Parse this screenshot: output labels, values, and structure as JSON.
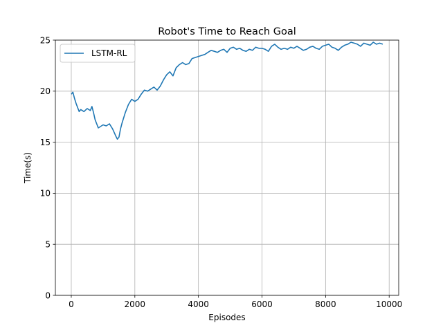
{
  "chart_data": {
    "type": "line",
    "title": "Robot's Time to Reach Goal",
    "xlabel": "Episodes",
    "ylabel": "Time(s)",
    "xlim": [
      -500,
      10300
    ],
    "ylim": [
      0,
      25
    ],
    "xticks": [
      0,
      2000,
      4000,
      6000,
      8000,
      10000
    ],
    "xtick_labels": [
      "0",
      "2000",
      "4000",
      "6000",
      "8000",
      "10000"
    ],
    "yticks": [
      0,
      5,
      10,
      15,
      20,
      25
    ],
    "ytick_labels": [
      "0",
      "5",
      "10",
      "15",
      "20",
      "25"
    ],
    "grid": true,
    "legend_position": "top-left",
    "series": [
      {
        "name": "LSTM-RL",
        "color": "#1f77b4",
        "x": [
          0,
          50,
          100,
          150,
          200,
          250,
          300,
          400,
          500,
          600,
          650,
          700,
          750,
          800,
          850,
          900,
          1000,
          1100,
          1200,
          1300,
          1400,
          1450,
          1500,
          1550,
          1600,
          1700,
          1800,
          1900,
          2000,
          2100,
          2200,
          2300,
          2400,
          2500,
          2600,
          2700,
          2800,
          2900,
          3000,
          3100,
          3200,
          3300,
          3400,
          3500,
          3600,
          3700,
          3800,
          3900,
          4000,
          4100,
          4200,
          4300,
          4400,
          4500,
          4600,
          4700,
          4800,
          4900,
          5000,
          5100,
          5200,
          5300,
          5400,
          5500,
          5600,
          5700,
          5800,
          5900,
          6000,
          6100,
          6200,
          6300,
          6400,
          6500,
          6600,
          6700,
          6800,
          6900,
          7000,
          7100,
          7200,
          7300,
          7400,
          7500,
          7600,
          7700,
          7800,
          7900,
          8000,
          8100,
          8200,
          8300,
          8400,
          8500,
          8600,
          8700,
          8800,
          8900,
          9000,
          9100,
          9200,
          9300,
          9400,
          9500,
          9600,
          9700,
          9800
        ],
        "y": [
          19.7,
          19.9,
          19.3,
          18.8,
          18.4,
          18.0,
          18.2,
          18.0,
          18.3,
          18.1,
          18.5,
          17.9,
          17.2,
          16.8,
          16.4,
          16.5,
          16.7,
          16.6,
          16.8,
          16.3,
          15.6,
          15.3,
          15.5,
          16.3,
          16.9,
          17.9,
          18.7,
          19.2,
          19.0,
          19.2,
          19.7,
          20.1,
          20.0,
          20.2,
          20.4,
          20.1,
          20.5,
          21.1,
          21.6,
          21.9,
          21.5,
          22.3,
          22.6,
          22.8,
          22.6,
          22.7,
          23.2,
          23.3,
          23.4,
          23.5,
          23.6,
          23.8,
          24.0,
          23.9,
          23.8,
          24.0,
          24.1,
          23.8,
          24.2,
          24.3,
          24.1,
          24.2,
          24.0,
          23.9,
          24.1,
          24.0,
          24.3,
          24.2,
          24.2,
          24.1,
          23.9,
          24.4,
          24.6,
          24.3,
          24.1,
          24.2,
          24.1,
          24.3,
          24.2,
          24.4,
          24.2,
          24.0,
          24.1,
          24.3,
          24.4,
          24.2,
          24.1,
          24.4,
          24.5,
          24.6,
          24.3,
          24.2,
          24.0,
          24.3,
          24.5,
          24.6,
          24.8,
          24.7,
          24.6,
          24.4,
          24.7,
          24.6,
          24.5,
          24.8,
          24.6,
          24.7,
          24.6
        ]
      }
    ]
  }
}
